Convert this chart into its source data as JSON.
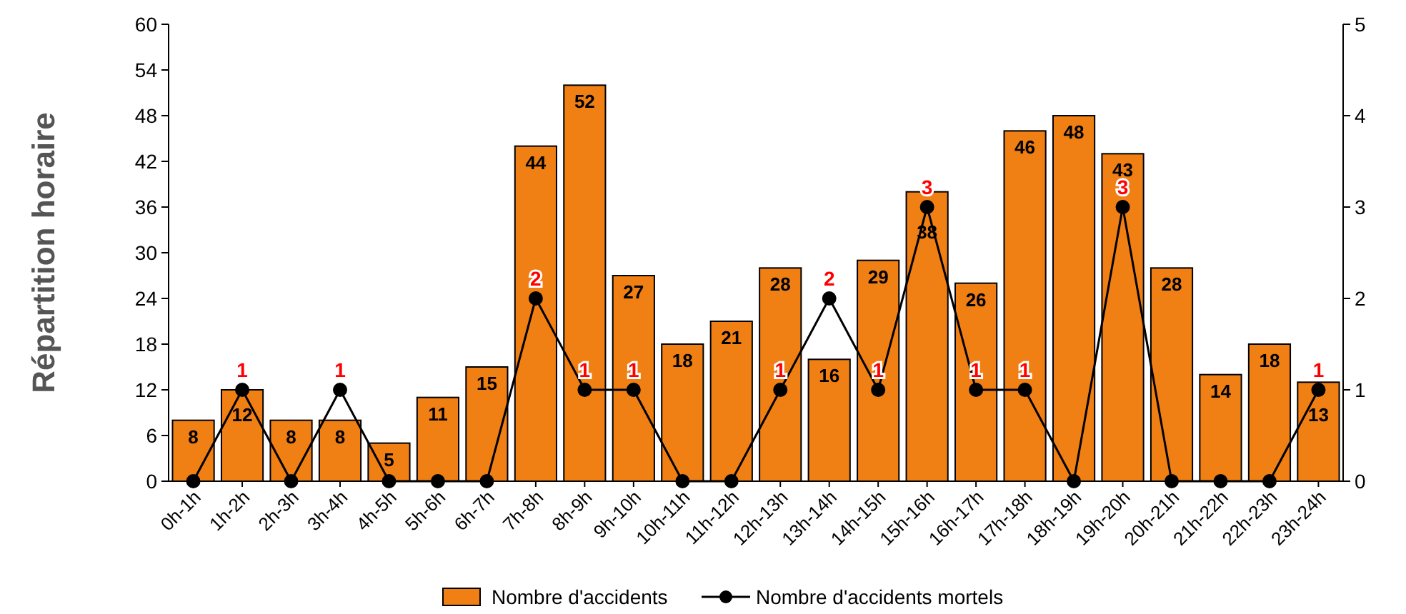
{
  "chart_data": {
    "type": "bar",
    "ylabel": "Répartition horaire",
    "categories": [
      "0h-1h",
      "1h-2h",
      "2h-3h",
      "3h-4h",
      "4h-5h",
      "5h-6h",
      "6h-7h",
      "7h-8h",
      "8h-9h",
      "9h-10h",
      "10h-11h",
      "11h-12h",
      "12h-13h",
      "13h-14h",
      "14h-15h",
      "15h-16h",
      "16h-17h",
      "17h-18h",
      "18h-19h",
      "19h-20h",
      "20h-21h",
      "21h-22h",
      "22h-23h",
      "23h-24h"
    ],
    "series": [
      {
        "name": "Nombre d'accidents",
        "color": "#f07f14",
        "data_labels": true,
        "values": [
          8,
          12,
          8,
          8,
          5,
          11,
          15,
          44,
          52,
          27,
          18,
          21,
          28,
          16,
          29,
          38,
          26,
          46,
          48,
          43,
          28,
          14,
          18,
          13
        ]
      },
      {
        "name": "Nombre d'accidents mortels",
        "type": "line",
        "axis": "y2",
        "color": "#000000",
        "marker": "circle",
        "values": [
          0,
          1,
          0,
          1,
          0,
          0,
          0,
          2,
          1,
          1,
          0,
          0,
          1,
          2,
          1,
          3,
          1,
          1,
          0,
          3,
          0,
          0,
          0,
          1
        ],
        "value_labels": [
          null,
          "1",
          null,
          "1",
          null,
          null,
          null,
          "2",
          "1",
          "1",
          null,
          null,
          "1",
          "2",
          "1",
          "3",
          "1",
          "1",
          null,
          "3",
          null,
          null,
          null,
          "1"
        ]
      }
    ],
    "ylim": [
      0,
      60
    ],
    "yticks": [
      0,
      6,
      12,
      18,
      24,
      30,
      36,
      42,
      48,
      54,
      60
    ],
    "y2lim": [
      0,
      5
    ],
    "y2ticks": [
      0,
      1,
      2,
      3,
      4,
      5
    ],
    "grid": false,
    "legend": "bottom"
  }
}
